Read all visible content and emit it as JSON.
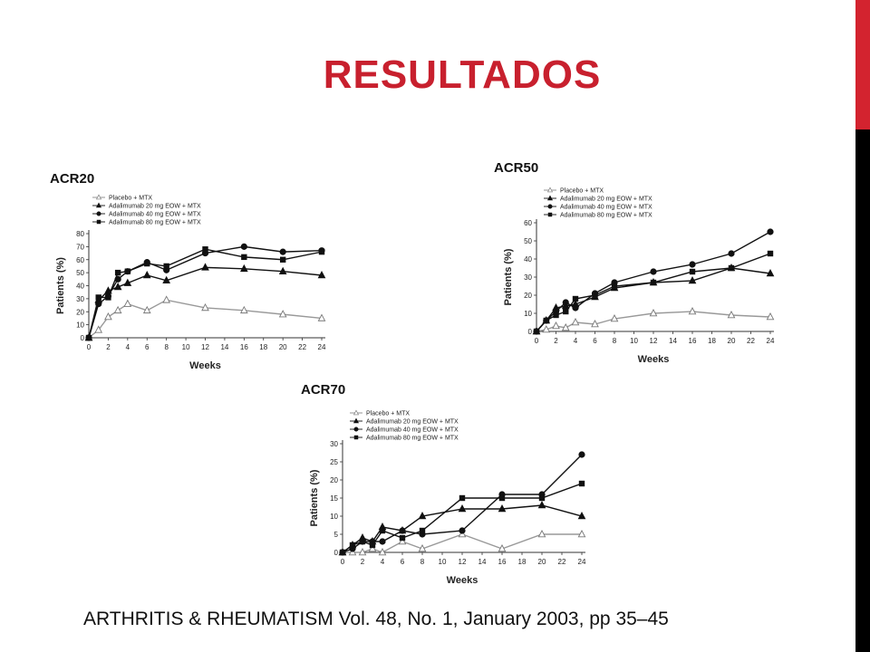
{
  "slide": {
    "title": "RESULTADOS",
    "citation": "ARTHRITIS & RHEUMATISM Vol. 48, No. 1, January 2003, pp 35–45",
    "accent_color": "#d3232f",
    "title_color": "#c8202e"
  },
  "chart_data": [
    {
      "type": "line",
      "title": "ACR20",
      "xlabel": "Weeks",
      "ylabel": "Patients (%)",
      "x_ticks": [
        0,
        2,
        4,
        6,
        8,
        10,
        12,
        14,
        16,
        18,
        20,
        22,
        24
      ],
      "y_ticks": [
        0,
        10,
        20,
        30,
        40,
        50,
        60,
        70,
        80
      ],
      "xlim": [
        0,
        24
      ],
      "ylim": [
        0,
        80
      ],
      "legend_position": "top-left",
      "series": [
        {
          "name": "Placebo + MTX",
          "marker": "triangle-open",
          "x": [
            0,
            1,
            2,
            3,
            4,
            6,
            8,
            12,
            16,
            20,
            24
          ],
          "y": [
            0,
            6,
            16,
            21,
            26,
            21,
            29,
            23,
            21,
            18,
            15
          ]
        },
        {
          "name": "Adalimumab 20 mg EOW + MTX",
          "marker": "triangle",
          "x": [
            0,
            1,
            2,
            3,
            4,
            6,
            8,
            12,
            16,
            20,
            24
          ],
          "y": [
            0,
            29,
            36,
            39,
            42,
            48,
            44,
            54,
            53,
            51,
            48
          ]
        },
        {
          "name": "Adalimumab 40 mg EOW + MTX",
          "marker": "circle",
          "x": [
            0,
            1,
            2,
            3,
            4,
            6,
            8,
            12,
            16,
            20,
            24
          ],
          "y": [
            0,
            26,
            32,
            45,
            51,
            58,
            52,
            65,
            70,
            66,
            67
          ]
        },
        {
          "name": "Adalimumab 80 mg EOW + MTX",
          "marker": "square",
          "x": [
            0,
            1,
            2,
            3,
            4,
            6,
            8,
            12,
            16,
            20,
            24
          ],
          "y": [
            0,
            31,
            31,
            50,
            51,
            57,
            55,
            68,
            62,
            60,
            66
          ]
        }
      ]
    },
    {
      "type": "line",
      "title": "ACR50",
      "xlabel": "Weeks",
      "ylabel": "Patients (%)",
      "x_ticks": [
        0,
        2,
        4,
        6,
        8,
        10,
        12,
        14,
        16,
        18,
        20,
        22,
        24
      ],
      "y_ticks": [
        0,
        10,
        20,
        30,
        40,
        50,
        60
      ],
      "xlim": [
        0,
        24
      ],
      "ylim": [
        0,
        60
      ],
      "legend_position": "top-left",
      "series": [
        {
          "name": "Placebo + MTX",
          "marker": "triangle-open",
          "x": [
            0,
            1,
            2,
            3,
            4,
            6,
            8,
            12,
            16,
            20,
            24
          ],
          "y": [
            0,
            1,
            3,
            2,
            5,
            4,
            7,
            10,
            11,
            9,
            8
          ]
        },
        {
          "name": "Adalimumab 20 mg EOW + MTX",
          "marker": "triangle",
          "x": [
            0,
            1,
            2,
            3,
            4,
            6,
            8,
            12,
            16,
            20,
            24
          ],
          "y": [
            0,
            6,
            13,
            14,
            15,
            19,
            24,
            27,
            28,
            35,
            32
          ]
        },
        {
          "name": "Adalimumab 40 mg EOW + MTX",
          "marker": "circle",
          "x": [
            0,
            1,
            2,
            3,
            4,
            6,
            8,
            12,
            16,
            20,
            24
          ],
          "y": [
            0,
            6,
            11,
            16,
            13,
            21,
            27,
            33,
            37,
            43,
            55
          ]
        },
        {
          "name": "Adalimumab 80 mg EOW + MTX",
          "marker": "square",
          "x": [
            0,
            1,
            2,
            3,
            4,
            6,
            8,
            12,
            16,
            20,
            24
          ],
          "y": [
            0,
            6,
            9,
            11,
            18,
            20,
            25,
            27,
            33,
            35,
            43
          ]
        }
      ]
    },
    {
      "type": "line",
      "title": "ACR70",
      "xlabel": "Weeks",
      "ylabel": "Patients (%)",
      "x_ticks": [
        0,
        2,
        4,
        6,
        8,
        10,
        12,
        14,
        16,
        18,
        20,
        22,
        24
      ],
      "y_ticks": [
        0,
        5,
        10,
        15,
        20,
        25,
        30
      ],
      "xlim": [
        0,
        24
      ],
      "ylim": [
        0,
        30
      ],
      "legend_position": "top-left",
      "series": [
        {
          "name": "Placebo + MTX",
          "marker": "triangle-open",
          "x": [
            0,
            1,
            2,
            3,
            4,
            6,
            8,
            12,
            16,
            20,
            24
          ],
          "y": [
            0,
            0,
            0,
            1,
            0,
            3,
            1,
            5,
            1,
            5,
            5
          ]
        },
        {
          "name": "Adalimumab 20 mg EOW + MTX",
          "marker": "triangle",
          "x": [
            0,
            1,
            2,
            3,
            4,
            6,
            8,
            12,
            16,
            20,
            24
          ],
          "y": [
            0,
            2,
            4,
            3,
            7,
            6,
            10,
            12,
            12,
            13,
            10
          ]
        },
        {
          "name": "Adalimumab 40 mg EOW + MTX",
          "marker": "circle",
          "x": [
            0,
            1,
            2,
            3,
            4,
            6,
            8,
            12,
            16,
            20,
            24
          ],
          "y": [
            0,
            1,
            3,
            3,
            3,
            6,
            5,
            6,
            16,
            16,
            27
          ]
        },
        {
          "name": "Adalimumab 80 mg EOW + MTX",
          "marker": "square",
          "x": [
            0,
            1,
            2,
            3,
            4,
            6,
            8,
            12,
            16,
            20,
            24
          ],
          "y": [
            0,
            2,
            3,
            2,
            6,
            4,
            6,
            15,
            15,
            15,
            19
          ]
        }
      ]
    }
  ]
}
